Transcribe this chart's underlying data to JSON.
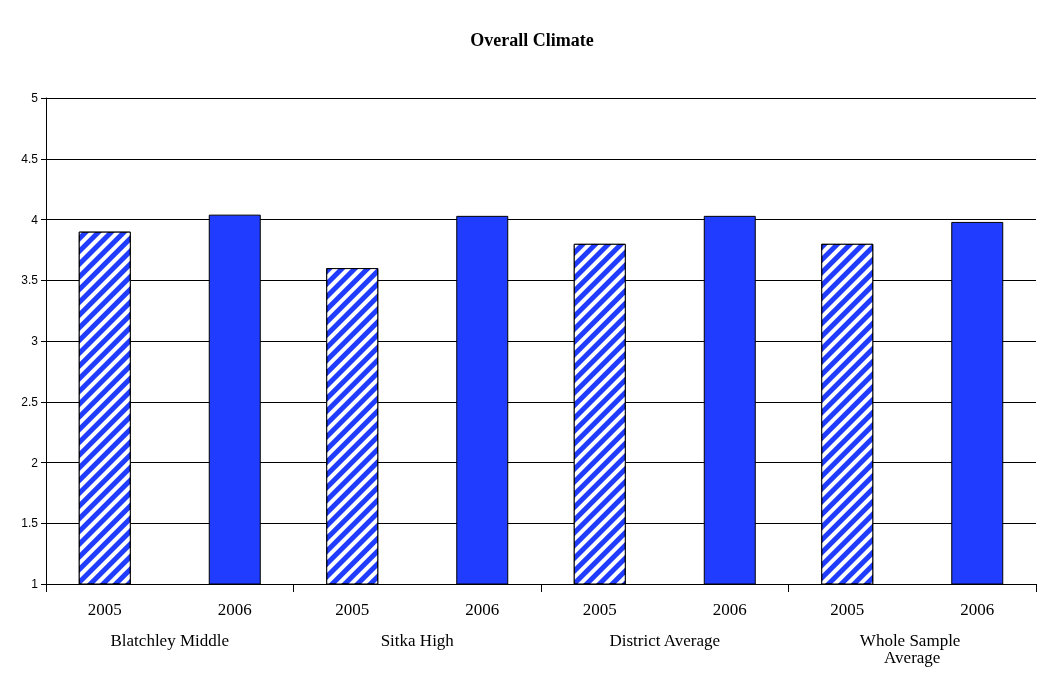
{
  "chart_data": {
    "type": "bar",
    "title": "Overall Climate",
    "categories": [
      "Blatchley Middle",
      "Sitka High",
      "District Average",
      "Whole Sample Average"
    ],
    "series": [
      {
        "name": "2005",
        "color": "#1f3cff",
        "values": [
          3.9,
          3.6,
          3.8,
          3.8
        ]
      },
      {
        "name": "2006",
        "color": "#1f3cff",
        "values": [
          4.04,
          4.03,
          4.03,
          3.98
        ]
      }
    ],
    "ylim": [
      1,
      5
    ],
    "yticks": [
      1,
      1.5,
      2,
      2.5,
      3,
      3.5,
      4,
      4.5,
      5
    ],
    "grid": "y",
    "legend": false
  }
}
